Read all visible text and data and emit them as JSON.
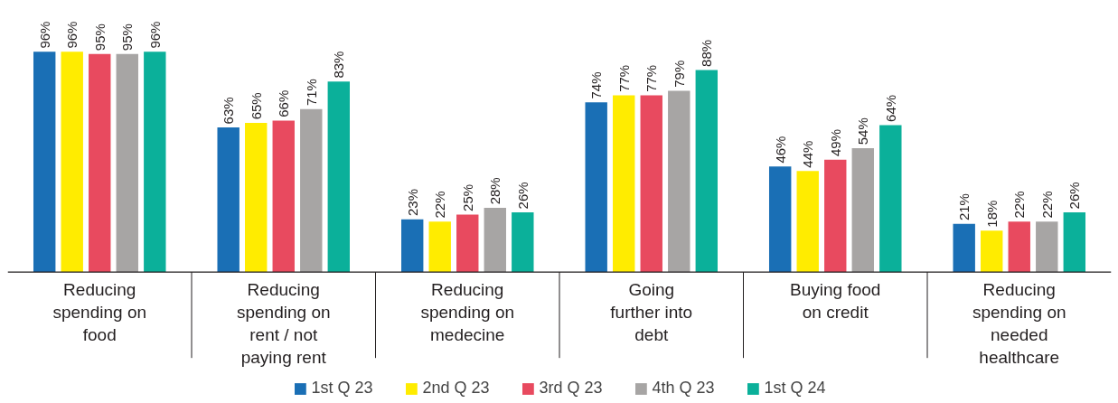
{
  "chart_data": {
    "type": "bar",
    "categories": [
      "Reducing spending on food",
      "Reducing spending on rent / not paying rent",
      "Reducing spending on medecine",
      "Going further into debt",
      "Buying food on credit",
      "Reducing spending on needed healthcare"
    ],
    "series": [
      {
        "name": "1st Q 23",
        "color": "#1a6fb5",
        "values": [
          96,
          63,
          23,
          74,
          46,
          21
        ],
        "value_labels": [
          "96%",
          "63%",
          "23%",
          "74%",
          "46%",
          "21%"
        ]
      },
      {
        "name": "2nd Q 23",
        "color": "#ffec00",
        "values": [
          96,
          65,
          22,
          77,
          44,
          18
        ],
        "value_labels": [
          "96%",
          "65%",
          "22%",
          "77%",
          "44%",
          "18%"
        ]
      },
      {
        "name": "3rd Q 23",
        "color": "#e84a5f",
        "values": [
          95,
          66,
          25,
          77,
          49,
          22
        ],
        "value_labels": [
          "95%",
          "66%",
          "25%",
          "77%",
          "49%",
          "22%"
        ]
      },
      {
        "name": "4th Q 23",
        "color": "#a7a5a4",
        "values": [
          95,
          71,
          28,
          79,
          54,
          22
        ],
        "value_labels": [
          "95%",
          "71%",
          "28%",
          "79%",
          "54%",
          "22%"
        ]
      },
      {
        "name": "1st Q 24",
        "color": "#0bb09a",
        "values": [
          96,
          83,
          26,
          88,
          64,
          26
        ],
        "value_labels": [
          "96%",
          "83%",
          "26%",
          "88%",
          "64%",
          "26%"
        ]
      }
    ],
    "legend": "bottom",
    "grid": false
  }
}
